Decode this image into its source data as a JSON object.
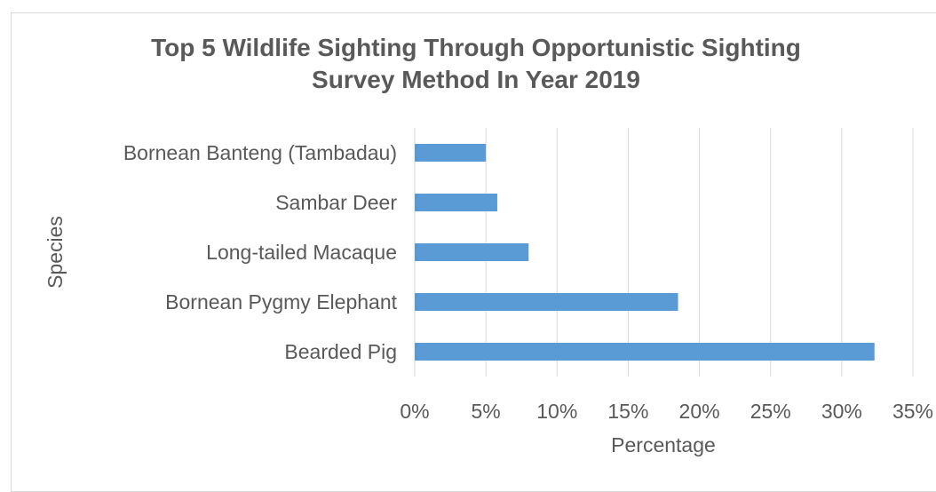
{
  "chart_data": {
    "type": "bar",
    "orientation": "horizontal",
    "title_lines": [
      "Top 5 Wildlife Sighting Through Opportunistic Sighting",
      "Survey Method In Year 2019"
    ],
    "xlabel": "Percentage",
    "ylabel": "Species",
    "categories": [
      "Bornean Banteng (Tambadau)",
      "Sambar Deer",
      "Long-tailed Macaque",
      "Bornean Pygmy Elephant",
      "Bearded Pig"
    ],
    "values": [
      5.0,
      5.8,
      8.0,
      18.5,
      32.3
    ],
    "xlim": [
      0,
      35
    ],
    "xticks": [
      0,
      5,
      10,
      15,
      20,
      25,
      30,
      35
    ],
    "xtick_labels": [
      "0%",
      "5%",
      "10%",
      "15%",
      "20%",
      "25%",
      "30%",
      "35%"
    ],
    "grid": true,
    "bar_color": "#5b9bd5",
    "grid_color": "#d9d9d9"
  }
}
